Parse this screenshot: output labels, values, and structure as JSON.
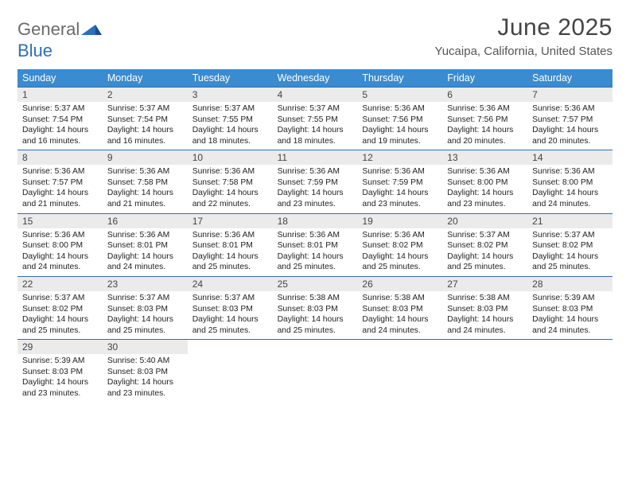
{
  "logo": {
    "part1": "General",
    "part2": "Blue"
  },
  "title": "June 2025",
  "location": "Yucaipa, California, United States",
  "header_bg": "#3a8bd0",
  "week_border": "#2d6fb8",
  "daynum_bg": "#ebebeb",
  "day_names": [
    "Sunday",
    "Monday",
    "Tuesday",
    "Wednesday",
    "Thursday",
    "Friday",
    "Saturday"
  ],
  "weeks": [
    [
      {
        "n": "1",
        "sr": "Sunrise: 5:37 AM",
        "ss": "Sunset: 7:54 PM",
        "dl": "Daylight: 14 hours and 16 minutes."
      },
      {
        "n": "2",
        "sr": "Sunrise: 5:37 AM",
        "ss": "Sunset: 7:54 PM",
        "dl": "Daylight: 14 hours and 16 minutes."
      },
      {
        "n": "3",
        "sr": "Sunrise: 5:37 AM",
        "ss": "Sunset: 7:55 PM",
        "dl": "Daylight: 14 hours and 18 minutes."
      },
      {
        "n": "4",
        "sr": "Sunrise: 5:37 AM",
        "ss": "Sunset: 7:55 PM",
        "dl": "Daylight: 14 hours and 18 minutes."
      },
      {
        "n": "5",
        "sr": "Sunrise: 5:36 AM",
        "ss": "Sunset: 7:56 PM",
        "dl": "Daylight: 14 hours and 19 minutes."
      },
      {
        "n": "6",
        "sr": "Sunrise: 5:36 AM",
        "ss": "Sunset: 7:56 PM",
        "dl": "Daylight: 14 hours and 20 minutes."
      },
      {
        "n": "7",
        "sr": "Sunrise: 5:36 AM",
        "ss": "Sunset: 7:57 PM",
        "dl": "Daylight: 14 hours and 20 minutes."
      }
    ],
    [
      {
        "n": "8",
        "sr": "Sunrise: 5:36 AM",
        "ss": "Sunset: 7:57 PM",
        "dl": "Daylight: 14 hours and 21 minutes."
      },
      {
        "n": "9",
        "sr": "Sunrise: 5:36 AM",
        "ss": "Sunset: 7:58 PM",
        "dl": "Daylight: 14 hours and 21 minutes."
      },
      {
        "n": "10",
        "sr": "Sunrise: 5:36 AM",
        "ss": "Sunset: 7:58 PM",
        "dl": "Daylight: 14 hours and 22 minutes."
      },
      {
        "n": "11",
        "sr": "Sunrise: 5:36 AM",
        "ss": "Sunset: 7:59 PM",
        "dl": "Daylight: 14 hours and 23 minutes."
      },
      {
        "n": "12",
        "sr": "Sunrise: 5:36 AM",
        "ss": "Sunset: 7:59 PM",
        "dl": "Daylight: 14 hours and 23 minutes."
      },
      {
        "n": "13",
        "sr": "Sunrise: 5:36 AM",
        "ss": "Sunset: 8:00 PM",
        "dl": "Daylight: 14 hours and 23 minutes."
      },
      {
        "n": "14",
        "sr": "Sunrise: 5:36 AM",
        "ss": "Sunset: 8:00 PM",
        "dl": "Daylight: 14 hours and 24 minutes."
      }
    ],
    [
      {
        "n": "15",
        "sr": "Sunrise: 5:36 AM",
        "ss": "Sunset: 8:00 PM",
        "dl": "Daylight: 14 hours and 24 minutes."
      },
      {
        "n": "16",
        "sr": "Sunrise: 5:36 AM",
        "ss": "Sunset: 8:01 PM",
        "dl": "Daylight: 14 hours and 24 minutes."
      },
      {
        "n": "17",
        "sr": "Sunrise: 5:36 AM",
        "ss": "Sunset: 8:01 PM",
        "dl": "Daylight: 14 hours and 25 minutes."
      },
      {
        "n": "18",
        "sr": "Sunrise: 5:36 AM",
        "ss": "Sunset: 8:01 PM",
        "dl": "Daylight: 14 hours and 25 minutes."
      },
      {
        "n": "19",
        "sr": "Sunrise: 5:36 AM",
        "ss": "Sunset: 8:02 PM",
        "dl": "Daylight: 14 hours and 25 minutes."
      },
      {
        "n": "20",
        "sr": "Sunrise: 5:37 AM",
        "ss": "Sunset: 8:02 PM",
        "dl": "Daylight: 14 hours and 25 minutes."
      },
      {
        "n": "21",
        "sr": "Sunrise: 5:37 AM",
        "ss": "Sunset: 8:02 PM",
        "dl": "Daylight: 14 hours and 25 minutes."
      }
    ],
    [
      {
        "n": "22",
        "sr": "Sunrise: 5:37 AM",
        "ss": "Sunset: 8:02 PM",
        "dl": "Daylight: 14 hours and 25 minutes."
      },
      {
        "n": "23",
        "sr": "Sunrise: 5:37 AM",
        "ss": "Sunset: 8:03 PM",
        "dl": "Daylight: 14 hours and 25 minutes."
      },
      {
        "n": "24",
        "sr": "Sunrise: 5:37 AM",
        "ss": "Sunset: 8:03 PM",
        "dl": "Daylight: 14 hours and 25 minutes."
      },
      {
        "n": "25",
        "sr": "Sunrise: 5:38 AM",
        "ss": "Sunset: 8:03 PM",
        "dl": "Daylight: 14 hours and 25 minutes."
      },
      {
        "n": "26",
        "sr": "Sunrise: 5:38 AM",
        "ss": "Sunset: 8:03 PM",
        "dl": "Daylight: 14 hours and 24 minutes."
      },
      {
        "n": "27",
        "sr": "Sunrise: 5:38 AM",
        "ss": "Sunset: 8:03 PM",
        "dl": "Daylight: 14 hours and 24 minutes."
      },
      {
        "n": "28",
        "sr": "Sunrise: 5:39 AM",
        "ss": "Sunset: 8:03 PM",
        "dl": "Daylight: 14 hours and 24 minutes."
      }
    ],
    [
      {
        "n": "29",
        "sr": "Sunrise: 5:39 AM",
        "ss": "Sunset: 8:03 PM",
        "dl": "Daylight: 14 hours and 23 minutes."
      },
      {
        "n": "30",
        "sr": "Sunrise: 5:40 AM",
        "ss": "Sunset: 8:03 PM",
        "dl": "Daylight: 14 hours and 23 minutes."
      },
      {
        "n": "",
        "sr": "",
        "ss": "",
        "dl": ""
      },
      {
        "n": "",
        "sr": "",
        "ss": "",
        "dl": ""
      },
      {
        "n": "",
        "sr": "",
        "ss": "",
        "dl": ""
      },
      {
        "n": "",
        "sr": "",
        "ss": "",
        "dl": ""
      },
      {
        "n": "",
        "sr": "",
        "ss": "",
        "dl": ""
      }
    ]
  ]
}
